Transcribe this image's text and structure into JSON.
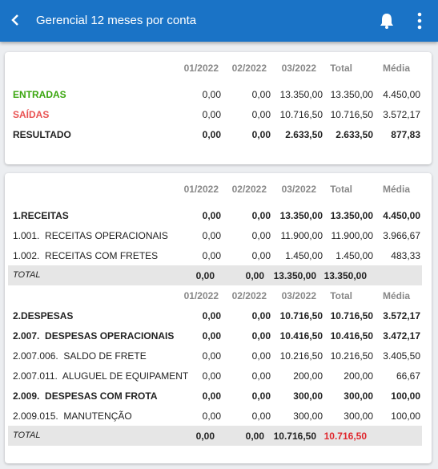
{
  "header": {
    "title": "Gerencial 12 meses por conta"
  },
  "summary": {
    "columns": [
      "01/2022",
      "02/2022",
      "03/2022",
      "Total",
      "Média"
    ],
    "rows": [
      {
        "label": "ENTRADAS",
        "values": [
          "0,00",
          "0,00",
          "13.350,00",
          "13.350,00",
          "4.450,00"
        ]
      },
      {
        "label": "SAÍDAS",
        "values": [
          "0,00",
          "0,00",
          "10.716,50",
          "10.716,50",
          "3.572,17"
        ]
      },
      {
        "label": "RESULTADO",
        "values": [
          "0,00",
          "0,00",
          "2.633,50",
          "2.633,50",
          "877,83"
        ]
      }
    ]
  },
  "detail": {
    "sections": [
      {
        "columns": [
          "01/2022",
          "02/2022",
          "03/2022",
          "Total",
          "Média"
        ],
        "rows": [
          {
            "label": "1.RECEITAS",
            "values": [
              "0,00",
              "0,00",
              "13.350,00",
              "13.350,00",
              "4.450,00"
            ]
          },
          {
            "label": "1.001.  RECEITAS OPERACIONAIS",
            "values": [
              "0,00",
              "0,00",
              "11.900,00",
              "11.900,00",
              "3.966,67"
            ]
          },
          {
            "label": "1.002.  RECEITAS COM FRETES",
            "values": [
              "0,00",
              "0,00",
              "1.450,00",
              "1.450,00",
              "483,33"
            ]
          },
          {
            "label": "TOTAL",
            "values": [
              "0,00",
              "0,00",
              "13.350,00",
              "13.350,00"
            ]
          }
        ]
      },
      {
        "columns": [
          "01/2022",
          "02/2022",
          "03/2022",
          "Total",
          "Média"
        ],
        "rows": [
          {
            "label": "2.DESPESAS",
            "values": [
              "0,00",
              "0,00",
              "10.716,50",
              "10.716,50",
              "3.572,17"
            ]
          },
          {
            "label": "2.007.  DESPESAS OPERACIONAIS",
            "values": [
              "0,00",
              "0,00",
              "10.416,50",
              "10.416,50",
              "3.472,17"
            ]
          },
          {
            "label": "2.007.006.  SALDO DE FRETE",
            "values": [
              "0,00",
              "0,00",
              "10.216,50",
              "10.216,50",
              "3.405,50"
            ]
          },
          {
            "label": "2.007.011.  ALUGUEL DE EQUIPAMENT",
            "values": [
              "0,00",
              "0,00",
              "200,00",
              "200,00",
              "66,67"
            ]
          },
          {
            "label": "2.009.  DESPESAS COM FROTA",
            "values": [
              "0,00",
              "0,00",
              "300,00",
              "300,00",
              "100,00"
            ]
          },
          {
            "label": "2.009.015.  MANUTENÇÃO",
            "values": [
              "0,00",
              "0,00",
              "300,00",
              "300,00",
              "100,00"
            ]
          },
          {
            "label": "TOTAL",
            "values": [
              "0,00",
              "0,00",
              "10.716,50",
              "10.716,50"
            ]
          }
        ]
      }
    ]
  }
}
